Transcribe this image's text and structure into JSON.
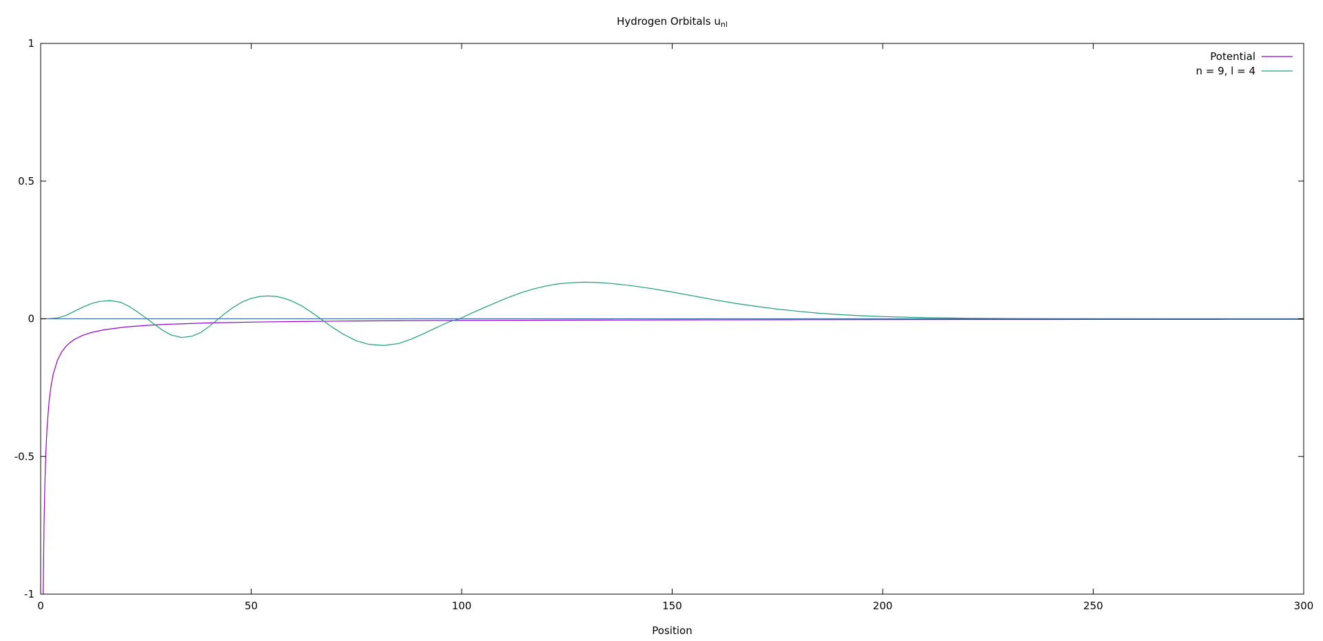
{
  "chart_data": {
    "type": "line",
    "title": "Hydrogen Orbitals u",
    "title_subscript": "nl",
    "xlabel": "Position",
    "ylabel": "",
    "xlim": [
      0,
      300
    ],
    "ylim": [
      -1,
      1
    ],
    "x_ticks": [
      0,
      50,
      100,
      150,
      200,
      250,
      300
    ],
    "y_ticks": [
      -1,
      -0.5,
      0,
      0.5,
      1
    ],
    "y_tick_labels": [
      "-1",
      "-0.5",
      "0",
      "0.5",
      "1"
    ],
    "grid": false,
    "legend_position": "top-right",
    "series": [
      {
        "name": "Potential",
        "color": "#9400d3",
        "x": [
          0.6,
          0.8,
          1,
          1.2,
          1.5,
          2,
          2.5,
          3,
          4,
          5,
          6,
          7,
          8,
          10,
          12,
          15,
          20,
          25,
          30,
          40,
          50,
          60,
          70,
          80,
          100,
          120,
          150,
          180,
          200,
          220,
          250,
          280,
          300
        ],
        "y": [
          -1,
          -0.75,
          -0.6,
          -0.5,
          -0.4,
          -0.3,
          -0.24,
          -0.2,
          -0.15,
          -0.12,
          -0.1,
          -0.086,
          -0.075,
          -0.06,
          -0.05,
          -0.04,
          -0.03,
          -0.024,
          -0.02,
          -0.015,
          -0.012,
          -0.01,
          -0.0086,
          -0.0075,
          -0.006,
          -0.005,
          -0.004,
          -0.0033,
          -0.003,
          -0.0027,
          -0.0024,
          -0.0021,
          -0.002
        ]
      },
      {
        "name": "n = 9, l = 4",
        "color": "#1a9e77",
        "x": [
          0,
          2,
          4,
          6,
          8,
          10,
          12,
          14,
          16.5,
          19,
          21,
          23,
          25,
          27,
          29,
          31,
          33.5,
          36,
          38,
          40,
          42,
          44,
          46,
          48,
          50,
          52,
          54,
          56,
          58,
          60,
          62,
          64,
          66.5,
          69,
          72,
          75,
          78,
          81.5,
          85,
          88,
          91,
          94,
          97,
          99.5,
          102,
          105,
          108,
          111,
          114,
          117,
          120,
          123,
          126,
          129,
          132,
          135,
          140,
          145,
          150,
          155,
          160,
          165,
          170,
          175,
          180,
          185,
          190,
          195,
          200,
          210,
          220,
          230,
          240,
          260,
          280,
          300
        ],
        "y": [
          0,
          0.0003,
          0.003,
          0.012,
          0.027,
          0.042,
          0.055,
          0.063,
          0.066,
          0.06,
          0.045,
          0.025,
          0.003,
          -0.02,
          -0.042,
          -0.059,
          -0.068,
          -0.063,
          -0.05,
          -0.028,
          -0.003,
          0.022,
          0.044,
          0.062,
          0.074,
          0.081,
          0.083,
          0.081,
          0.074,
          0.062,
          0.047,
          0.027,
          0.0,
          -0.028,
          -0.057,
          -0.08,
          -0.093,
          -0.097,
          -0.09,
          -0.074,
          -0.054,
          -0.032,
          -0.011,
          0.0,
          0.018,
          0.038,
          0.058,
          0.077,
          0.094,
          0.108,
          0.119,
          0.127,
          0.131,
          0.133,
          0.132,
          0.129,
          0.121,
          0.11,
          0.097,
          0.083,
          0.069,
          0.056,
          0.045,
          0.035,
          0.027,
          0.02,
          0.015,
          0.011,
          0.008,
          0.004,
          0.002,
          0.001,
          0.0004,
          0.0001,
          0.0,
          0.0
        ]
      },
      {
        "name": "",
        "color": "#3d6ea8",
        "x": [
          0,
          300
        ],
        "y": [
          0,
          0
        ]
      }
    ]
  }
}
